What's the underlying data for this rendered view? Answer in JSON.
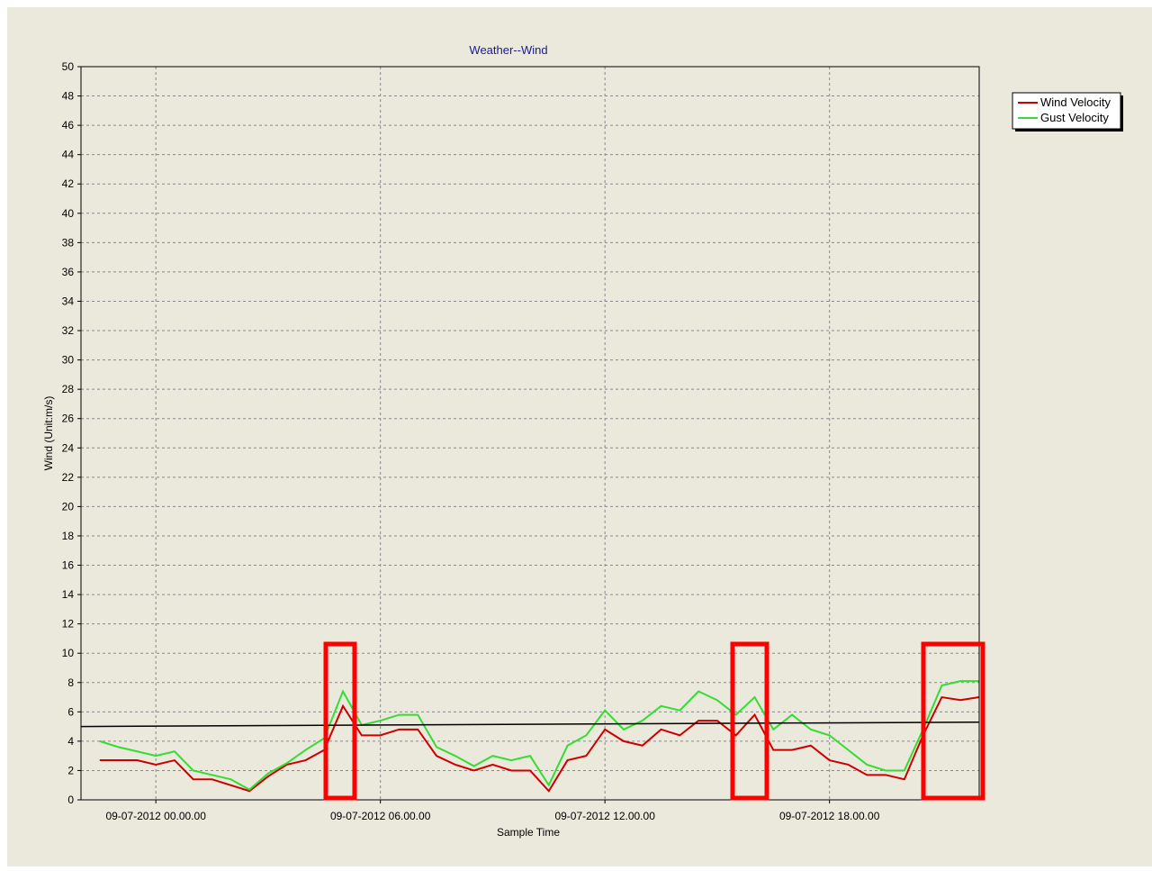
{
  "chart_data": {
    "type": "line",
    "title": "Weather--Wind",
    "x_label": "Sample Time",
    "y_label": "Wind (Unit:m/s)",
    "x": [
      -1.5,
      -1.0,
      -0.5,
      0.0,
      0.5,
      1.0,
      1.5,
      2.0,
      2.5,
      3.0,
      3.5,
      4.0,
      4.5,
      5.0,
      5.5,
      6.0,
      6.5,
      7.0,
      7.5,
      8.0,
      8.5,
      9.0,
      9.5,
      10.0,
      10.5,
      11.0,
      11.5,
      12.0,
      12.5,
      13.0,
      13.5,
      14.0,
      14.5,
      15.0,
      15.5,
      16.0,
      16.5,
      17.0,
      17.5,
      18.0,
      18.5,
      19.0,
      19.5,
      20.0,
      20.5,
      21.0,
      21.5,
      22.0
    ],
    "series": [
      {
        "name": "Wind Velocity",
        "color": "#cc0000",
        "values": [
          2.7,
          2.7,
          2.7,
          2.4,
          2.7,
          1.4,
          1.4,
          1.0,
          0.6,
          1.6,
          2.4,
          2.7,
          3.4,
          6.4,
          4.4,
          4.4,
          4.8,
          4.8,
          3.0,
          2.4,
          2.0,
          2.4,
          2.0,
          2.0,
          0.6,
          2.7,
          3.0,
          4.8,
          4.0,
          3.7,
          4.8,
          4.4,
          5.4,
          5.4,
          4.4,
          5.8,
          3.4,
          3.4,
          3.7,
          2.7,
          2.4,
          1.7,
          1.7,
          1.4,
          4.4,
          7.0,
          6.8,
          7.0
        ]
      },
      {
        "name": "Gust Velocity",
        "color": "#33dd33",
        "values": [
          4.0,
          3.6,
          3.3,
          3.0,
          3.3,
          2.0,
          1.7,
          1.4,
          0.7,
          1.8,
          2.5,
          3.4,
          4.2,
          7.4,
          5.1,
          5.4,
          5.8,
          5.8,
          3.6,
          3.0,
          2.3,
          3.0,
          2.7,
          3.0,
          1.0,
          3.7,
          4.4,
          6.1,
          4.8,
          5.4,
          6.4,
          6.1,
          7.4,
          6.8,
          5.8,
          7.0,
          4.8,
          5.8,
          4.8,
          4.4,
          3.4,
          2.4,
          2.0,
          2.0,
          4.8,
          7.8,
          8.1,
          8.1
        ]
      }
    ],
    "reference_line": {
      "x": [
        -2,
        22
      ],
      "values": [
        5.0,
        5.3
      ],
      "color": "#000000"
    },
    "xlim": [
      -2,
      22
    ],
    "xticks": [
      {
        "value": 0,
        "label": "09-07-2012 00.00.00"
      },
      {
        "value": 6,
        "label": "09-07-2012 06.00.00"
      },
      {
        "value": 12,
        "label": "09-07-2012 12.00.00"
      },
      {
        "value": 18,
        "label": "09-07-2012 18.00.00"
      }
    ],
    "ylim": [
      0,
      50
    ],
    "yticks": [
      0,
      2,
      4,
      6,
      8,
      10,
      12,
      14,
      16,
      18,
      20,
      22,
      24,
      26,
      28,
      30,
      32,
      34,
      36,
      38,
      40,
      42,
      44,
      46,
      48,
      50
    ],
    "grid": true,
    "legend": "top-right"
  }
}
